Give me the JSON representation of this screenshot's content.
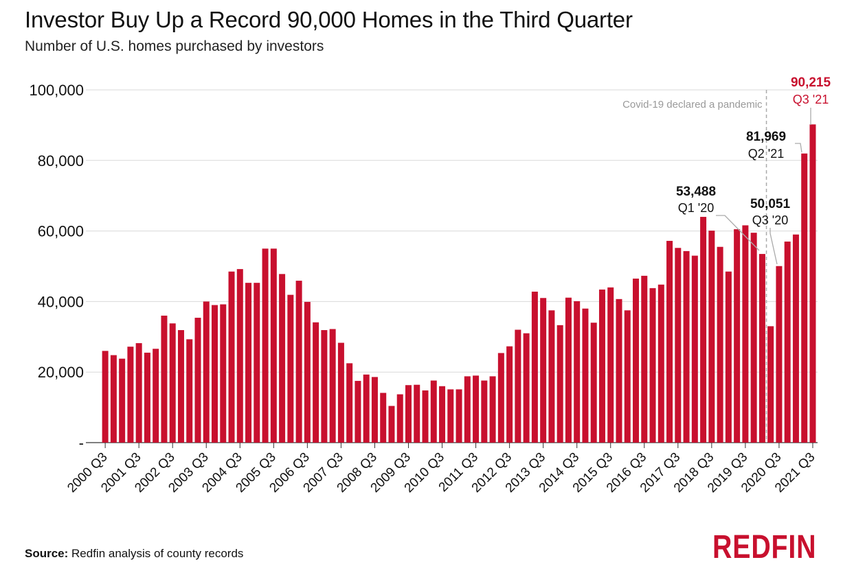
{
  "title": "Investor Buy Up a Record 90,000 Homes in the Third Quarter",
  "subtitle": "Number of U.S. homes purchased by investors",
  "source_label": "Source:",
  "source_text": " Redfin analysis of county records",
  "logo_text": "REDFIN",
  "colors": {
    "bar": "#c8102e",
    "highlight": "#c8102e",
    "grid": "#d9d9d9",
    "annotation": "#999999"
  },
  "chart_data": {
    "type": "bar",
    "ylim": [
      0,
      100000
    ],
    "yticks": [
      0,
      20000,
      40000,
      60000,
      80000,
      100000
    ],
    "ytick_labels": [
      "-",
      "20,000",
      "40,000",
      "60,000",
      "80,000",
      "100,000"
    ],
    "grid": true,
    "xtick_labels": [
      "2000 Q3",
      "2001 Q3",
      "2002 Q3",
      "2003 Q3",
      "2004 Q3",
      "2005 Q3",
      "2006 Q3",
      "2007 Q3",
      "2008 Q3",
      "2009 Q3",
      "2010 Q3",
      "2011 Q3",
      "2012 Q3",
      "2013 Q3",
      "2014 Q3",
      "2015 Q3",
      "2016 Q3",
      "2017 Q3",
      "2018 Q3",
      "2019 Q3",
      "2020 Q3",
      "2021 Q3"
    ],
    "first_category": "2000 Q3",
    "last_category": "2021 Q3",
    "values": [
      26000,
      24800,
      23800,
      27200,
      28200,
      25500,
      26600,
      36000,
      33800,
      31900,
      29300,
      35400,
      40000,
      39000,
      39200,
      48500,
      49200,
      45300,
      45300,
      55000,
      55000,
      47800,
      41900,
      45900,
      39900,
      34100,
      31900,
      32200,
      28300,
      22500,
      17500,
      19300,
      18600,
      14100,
      10400,
      13700,
      16300,
      16400,
      14800,
      17600,
      16000,
      15100,
      15100,
      18800,
      19000,
      17600,
      18800,
      25400,
      27300,
      32000,
      31000,
      42800,
      41000,
      37500,
      33300,
      41100,
      40100,
      38000,
      34000,
      43400,
      44000,
      40700,
      37500,
      46500,
      47300,
      43800,
      44800,
      57200,
      55200,
      54300,
      53000,
      64000,
      60100,
      55500,
      48500,
      60500,
      61600,
      59500,
      53488,
      33000,
      50051,
      57000,
      59000,
      81969,
      90215
    ],
    "annotations": [
      {
        "value_label": "53,488",
        "period_label": "Q1 '20",
        "index": 78,
        "color": "#111111"
      },
      {
        "value_label": "50,051",
        "period_label": "Q3 '20",
        "index": 80,
        "color": "#111111"
      },
      {
        "value_label": "81,969",
        "period_label": "Q2 '21",
        "index": 83,
        "color": "#111111"
      },
      {
        "value_label": "90,215",
        "period_label": "Q3 '21",
        "index": 84,
        "color": "#c8102e"
      }
    ],
    "event_line": {
      "label": "Covid-19 declared a pandemic",
      "index": 78.5
    }
  }
}
